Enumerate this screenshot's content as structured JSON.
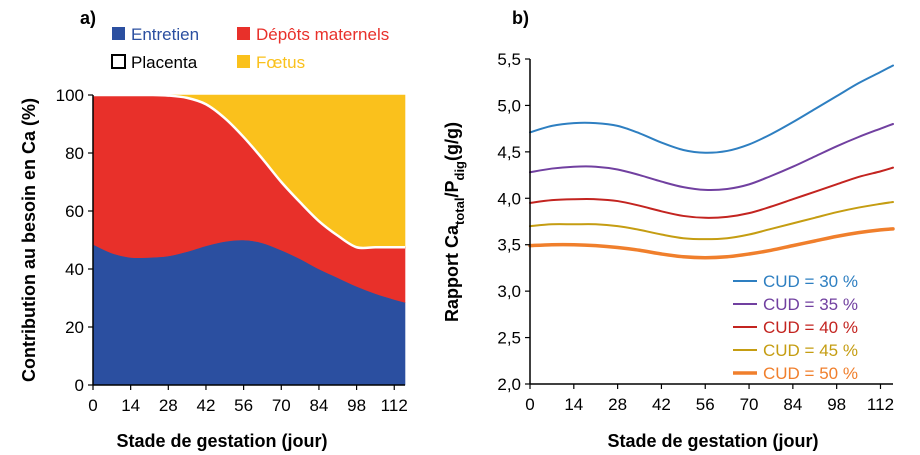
{
  "chart_data": [
    {
      "panel": "a)",
      "type": "area",
      "stacked": true,
      "xlabel": "Stade de gestation (jour)",
      "ylabel": "Contribution au besoin en Ca (%)",
      "xlim": [
        0,
        116
      ],
      "ylim": [
        0,
        100
      ],
      "xticks": [
        "0",
        "14",
        "28",
        "42",
        "56",
        "70",
        "84",
        "98",
        "112"
      ],
      "yticks": [
        "0",
        "20",
        "40",
        "60",
        "80",
        "100"
      ],
      "x": [
        0,
        7,
        14,
        21,
        28,
        35,
        42,
        49,
        56,
        63,
        70,
        77,
        84,
        91,
        98,
        105,
        112,
        116
      ],
      "series": [
        {
          "name": "Entretien",
          "color": "#2b4fa0",
          "values": [
            48.5,
            45.5,
            44,
            44,
            44.5,
            46,
            48,
            49.5,
            50,
            49,
            46.5,
            43.5,
            40,
            37,
            34,
            31.5,
            29.5,
            28.5
          ]
        },
        {
          "name": "Placenta",
          "color": "#ffffff",
          "values": [
            0,
            0,
            0,
            0,
            0,
            0,
            0,
            0,
            0,
            0,
            0,
            0,
            0,
            0,
            0,
            0,
            0,
            0
          ]
        },
        {
          "name": "Dépôts maternels",
          "color": "#e8302a",
          "values": [
            51.5,
            54.5,
            56,
            56,
            55.3,
            53,
            48.8,
            42.5,
            35.5,
            29,
            23.5,
            19.5,
            16.5,
            14.5,
            13.5,
            16,
            18,
            19
          ]
        },
        {
          "name": "Fœtus",
          "color": "#fac11c",
          "values": [
            0,
            0,
            0,
            0,
            0.2,
            1,
            3.2,
            8,
            14.5,
            22,
            30,
            37,
            43.5,
            48.5,
            52.5,
            52.5,
            52.5,
            52.5
          ]
        }
      ],
      "legend": [
        {
          "label": "Entretien",
          "color": "#2b4fa0",
          "text_color": "#2b4fa0",
          "box": "filled"
        },
        {
          "label": "Dépôts maternels",
          "color": "#e8302a",
          "text_color": "#e8302a",
          "box": "filled"
        },
        {
          "label": "Placenta",
          "color": "#ffffff",
          "text_color": "#000000",
          "box": "outline"
        },
        {
          "label": "Fœtus",
          "color": "#fac11c",
          "text_color": "#fac11c",
          "box": "filled"
        }
      ]
    },
    {
      "panel": "b)",
      "type": "line",
      "xlabel": "Stade de gestation (jour)",
      "ylabel_main": "Rapport Ca",
      "ylabel_sub1": "total",
      "ylabel_mid": "/P",
      "ylabel_sub2": "dig",
      "ylabel_end": "(g/g)",
      "xlim": [
        0,
        116
      ],
      "ylim": [
        2.0,
        5.5
      ],
      "xticks": [
        "0",
        "14",
        "28",
        "42",
        "56",
        "70",
        "84",
        "98",
        "112"
      ],
      "yticks": [
        "2,0",
        "2,5",
        "3,0",
        "3,5",
        "4,0",
        "4,5",
        "5,0",
        "5,5"
      ],
      "x": [
        0,
        7,
        14,
        21,
        28,
        35,
        42,
        49,
        56,
        63,
        70,
        77,
        84,
        91,
        98,
        105,
        112,
        116
      ],
      "legend_position": "bottom-right",
      "series": [
        {
          "name": "CUD = 30 %",
          "color": "#2e7fc1",
          "width": 2,
          "values": [
            4.71,
            4.78,
            4.81,
            4.81,
            4.78,
            4.7,
            4.6,
            4.52,
            4.49,
            4.51,
            4.58,
            4.69,
            4.82,
            4.96,
            5.1,
            5.24,
            5.36,
            5.43
          ]
        },
        {
          "name": "CUD = 35 %",
          "color": "#7140a0",
          "width": 2,
          "values": [
            4.28,
            4.32,
            4.34,
            4.34,
            4.31,
            4.25,
            4.18,
            4.12,
            4.09,
            4.1,
            4.15,
            4.24,
            4.34,
            4.45,
            4.56,
            4.66,
            4.75,
            4.8
          ]
        },
        {
          "name": "CUD = 40 %",
          "color": "#c32420",
          "width": 2,
          "values": [
            3.95,
            3.98,
            3.99,
            3.99,
            3.97,
            3.92,
            3.86,
            3.81,
            3.79,
            3.8,
            3.84,
            3.91,
            3.99,
            4.07,
            4.15,
            4.23,
            4.29,
            4.33
          ]
        },
        {
          "name": "CUD = 45 %",
          "color": "#c59d12",
          "width": 2,
          "values": [
            3.7,
            3.72,
            3.72,
            3.72,
            3.7,
            3.66,
            3.61,
            3.57,
            3.56,
            3.57,
            3.61,
            3.67,
            3.73,
            3.79,
            3.85,
            3.9,
            3.94,
            3.96
          ]
        },
        {
          "name": "CUD = 50 %",
          "color": "#f07f2c",
          "width": 3.5,
          "values": [
            3.49,
            3.5,
            3.5,
            3.49,
            3.47,
            3.44,
            3.4,
            3.37,
            3.36,
            3.37,
            3.4,
            3.44,
            3.49,
            3.54,
            3.59,
            3.63,
            3.66,
            3.67
          ]
        }
      ]
    }
  ]
}
